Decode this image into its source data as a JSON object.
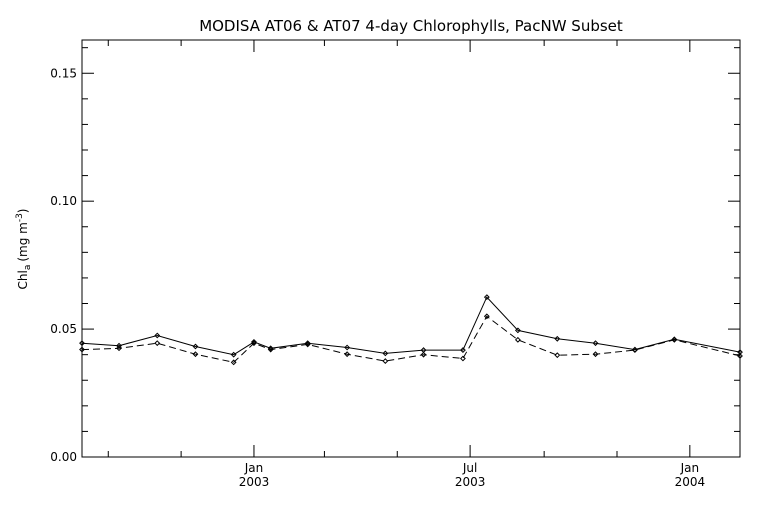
{
  "chart_data": {
    "type": "line",
    "title": "MODISA AT06 & AT07 4-day Chlorophylls, PacNW Subset",
    "ylabel": {
      "main": "Chl",
      "sub": "a",
      "unit": "(mg m",
      "exp": "-3",
      "close": ")"
    },
    "xlabel": "",
    "xlim": [
      "2002-08-10",
      "2004-02-12"
    ],
    "ylim": [
      0.0,
      0.163
    ],
    "yticks": [
      {
        "value": 0.0,
        "label": "0.00"
      },
      {
        "value": 0.05,
        "label": "0.05"
      },
      {
        "value": 0.1,
        "label": "0.10"
      },
      {
        "value": 0.15,
        "label": "0.15"
      }
    ],
    "y_minor_step": 0.01,
    "xticks": [
      {
        "date": "2003-01-01",
        "month": "Jan",
        "year": "2003"
      },
      {
        "date": "2003-07-01",
        "month": "Jul",
        "year": "2003"
      },
      {
        "date": "2004-01-01",
        "month": "Jan",
        "year": "2004"
      }
    ],
    "x_minor_ticks": [
      "2002-09-01",
      "2002-11-01",
      "2003-03-01",
      "2003-05-01",
      "2003-09-01",
      "2003-11-01"
    ],
    "grid": false,
    "series": [
      {
        "style": "solid",
        "x": [
          "2002-08-10",
          "2002-09-10",
          "2002-10-12",
          "2002-11-13",
          "2002-12-15",
          "2003-01-01",
          "2003-01-15",
          "2003-02-15",
          "2003-03-20",
          "2003-04-21",
          "2003-05-23",
          "2003-06-25",
          "2003-07-15",
          "2003-08-10",
          "2003-09-12",
          "2003-10-14",
          "2003-11-16",
          "2003-12-19",
          "2004-02-12"
        ],
        "values": [
          0.0445,
          0.0435,
          0.0475,
          0.0432,
          0.04,
          0.045,
          0.0425,
          0.0445,
          0.0428,
          0.0405,
          0.0418,
          0.0418,
          0.0625,
          0.0495,
          0.0462,
          0.0445,
          0.042,
          0.046,
          0.041
        ]
      },
      {
        "style": "dashed",
        "x": [
          "2002-08-10",
          "2002-09-10",
          "2002-10-12",
          "2002-11-13",
          "2002-12-15",
          "2003-01-01",
          "2003-01-15",
          "2003-02-15",
          "2003-03-20",
          "2003-04-21",
          "2003-05-23",
          "2003-06-25",
          "2003-07-15",
          "2003-08-10",
          "2003-09-12",
          "2003-10-14",
          "2003-11-16",
          "2003-12-19",
          "2004-02-12"
        ],
        "values": [
          0.042,
          0.0425,
          0.0445,
          0.0402,
          0.037,
          0.0445,
          0.042,
          0.044,
          0.0402,
          0.0375,
          0.04,
          0.0385,
          0.055,
          0.0458,
          0.0398,
          0.0402,
          0.0418,
          0.0458,
          0.0395
        ]
      }
    ]
  }
}
